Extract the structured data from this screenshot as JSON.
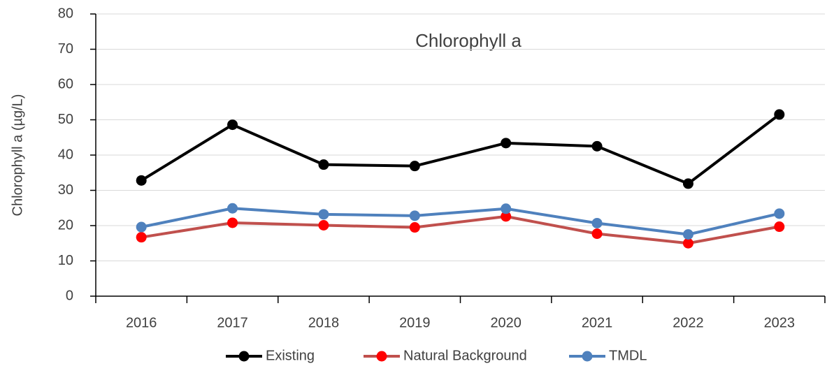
{
  "chart_data": {
    "type": "line",
    "title": "Chlorophyll a",
    "y_label": "Chlorophyll a (µg/L)",
    "categories": [
      "2016",
      "2017",
      "2018",
      "2019",
      "2020",
      "2021",
      "2022",
      "2023"
    ],
    "series": [
      {
        "name": "Existing",
        "color": "#000000",
        "marker_color": "#000000",
        "values": [
          32.8,
          48.6,
          37.3,
          36.9,
          43.4,
          42.5,
          31.9,
          51.5
        ]
      },
      {
        "name": "Natural Background",
        "color": "#c0504d",
        "marker_color": "#ff0000",
        "values": [
          16.7,
          20.8,
          20.1,
          19.5,
          22.6,
          17.7,
          15.0,
          19.7
        ]
      },
      {
        "name": "TMDL",
        "color": "#4f81bd",
        "marker_color": "#4f81bd",
        "values": [
          19.6,
          24.9,
          23.2,
          22.8,
          24.8,
          20.7,
          17.5,
          23.4
        ]
      }
    ],
    "ylim": [
      0,
      80
    ],
    "yticks": [
      0,
      10,
      20,
      30,
      40,
      50,
      60,
      70,
      80
    ],
    "grid": true,
    "legend": "bottom"
  }
}
